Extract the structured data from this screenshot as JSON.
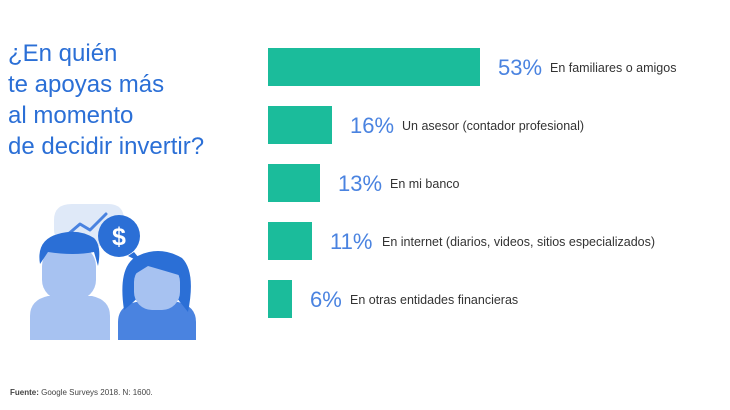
{
  "question": {
    "lines": [
      "¿En quién",
      "te apoyas más",
      "al momento",
      "de decidir invertir?"
    ]
  },
  "source": {
    "label": "Fuente:",
    "text": "Google Surveys 2018. N: 1600."
  },
  "icons": {
    "chart_bubble": "trend-chart-speech-bubble-icon",
    "dollar_bubble": "dollar-speech-bubble-icon",
    "man": "man-avatar-icon",
    "woman": "woman-avatar-icon"
  },
  "colors": {
    "bar": "#1bbc9b",
    "question_text": "#2b6fd6",
    "percent_text": "#4a83e0",
    "label_text": "#333333"
  },
  "chart_data": {
    "type": "bar",
    "orientation": "horizontal",
    "categories": [
      "En familiares o amigos",
      "Un asesor (contador profesional)",
      "En mi banco",
      "En internet (diarios, videos, sitios especializados)",
      "En otras entidades financieras"
    ],
    "values": [
      53,
      16,
      13,
      11,
      6
    ],
    "value_labels": [
      "53%",
      "16%",
      "13%",
      "11%",
      "6%"
    ],
    "unit": "%",
    "xlim": [
      0,
      53
    ],
    "grid": false,
    "legend": "none"
  }
}
